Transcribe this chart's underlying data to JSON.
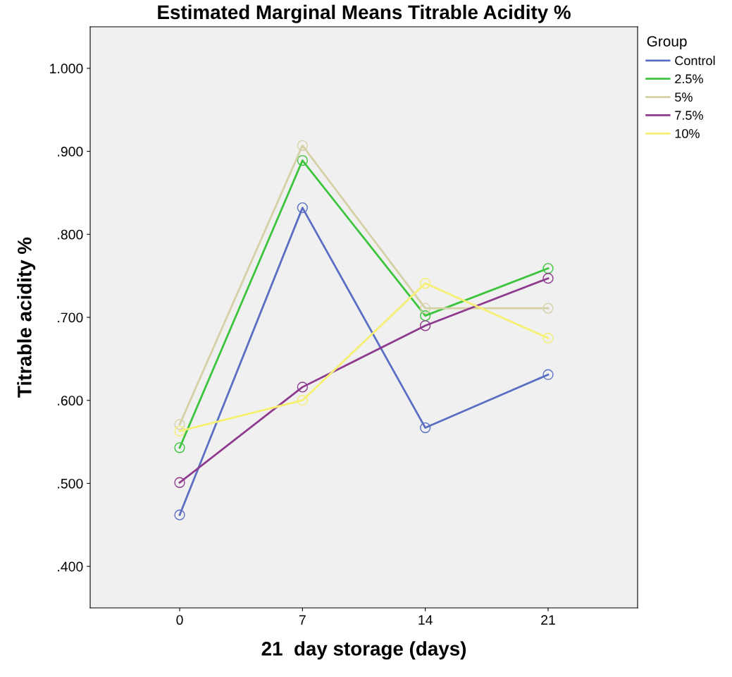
{
  "chart_data": {
    "type": "line",
    "title": "Estimated Marginal Means Titrable Acidity %",
    "xlabel": "21  day storage (days)",
    "ylabel": "Titrable acidity %",
    "legend_title": "Group",
    "legend": "top right",
    "x": [
      0,
      7,
      14,
      21
    ],
    "xlim": [
      -5.1,
      26.1
    ],
    "xticks": [
      0,
      7,
      14,
      21
    ],
    "ylim": [
      0.35,
      1.05
    ],
    "yticks": [
      {
        "value": 0.4,
        "label": ".400"
      },
      {
        "value": 0.5,
        "label": ".500"
      },
      {
        "value": 0.6,
        "label": ".600"
      },
      {
        "value": 0.7,
        "label": ".700"
      },
      {
        "value": 0.8,
        "label": ".800"
      },
      {
        "value": 0.9,
        "label": ".900"
      },
      {
        "value": 1.0,
        "label": "1.000"
      }
    ],
    "marker": "circle",
    "grid": false,
    "series": [
      {
        "name": "Control",
        "color": "#5a6ec4",
        "values": [
          0.462,
          0.832,
          0.567,
          0.631
        ]
      },
      {
        "name": "2.5%",
        "color": "#3cc43c",
        "values": [
          0.543,
          0.889,
          0.702,
          0.759
        ]
      },
      {
        "name": "5%",
        "color": "#d6d0a6",
        "values": [
          0.571,
          0.907,
          0.711,
          0.711
        ]
      },
      {
        "name": "7.5%",
        "color": "#8e3a8e",
        "values": [
          0.501,
          0.616,
          0.69,
          0.747
        ]
      },
      {
        "name": "10%",
        "color": "#f5ef72",
        "values": [
          0.563,
          0.6,
          0.741,
          0.675
        ]
      }
    ]
  }
}
